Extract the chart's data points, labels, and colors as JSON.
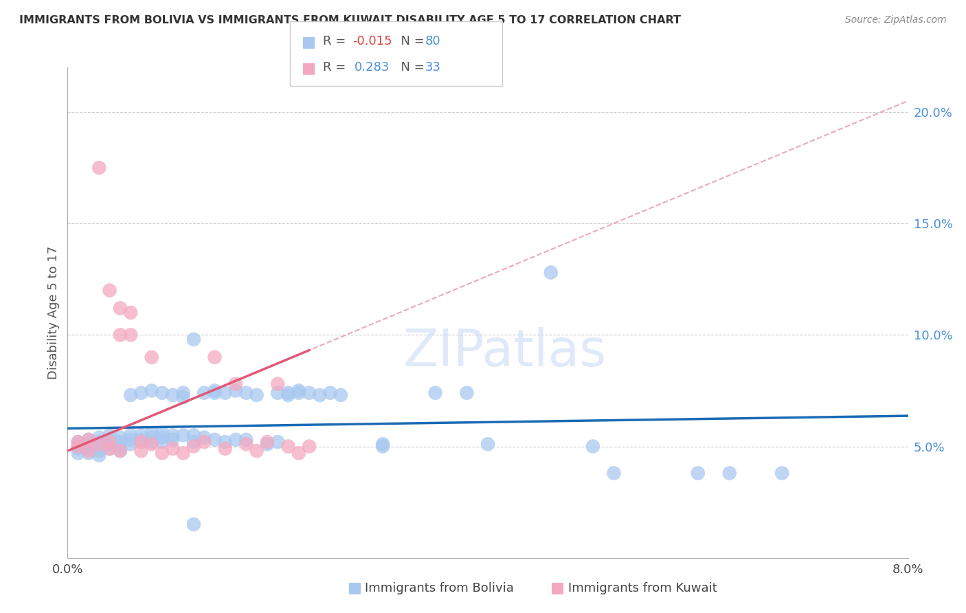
{
  "title": "IMMIGRANTS FROM BOLIVIA VS IMMIGRANTS FROM KUWAIT DISABILITY AGE 5 TO 17 CORRELATION CHART",
  "source": "Source: ZipAtlas.com",
  "ylabel": "Disability Age 5 to 17",
  "xlim": [
    0.0,
    0.08
  ],
  "ylim": [
    0.0,
    0.22
  ],
  "xtick_positions": [
    0.0,
    0.02,
    0.04,
    0.06,
    0.08
  ],
  "xtick_labels": [
    "0.0%",
    "",
    "",
    "",
    "8.0%"
  ],
  "ytick_positions": [
    0.05,
    0.1,
    0.15,
    0.2
  ],
  "ytick_labels": [
    "5.0%",
    "10.0%",
    "15.0%",
    "20.0%"
  ],
  "bolivia_color": "#a8c8f0",
  "kuwait_color": "#f4a8c0",
  "bolivia_line_color": "#1a6bb5",
  "kuwait_line_color": "#e05878",
  "dashed_line_color": "#e08898",
  "R_bolivia": -0.015,
  "N_bolivia": 80,
  "R_kuwait": 0.283,
  "N_kuwait": 33,
  "legend_label_bolivia": "Immigrants from Bolivia",
  "legend_label_kuwait": "Immigrants from Kuwait",
  "bolivia_scatter": [
    [
      0.001,
      0.052
    ],
    [
      0.001,
      0.05
    ],
    [
      0.001,
      0.049
    ],
    [
      0.001,
      0.047
    ],
    [
      0.002,
      0.053
    ],
    [
      0.002,
      0.051
    ],
    [
      0.002,
      0.049
    ],
    [
      0.002,
      0.047
    ],
    [
      0.003,
      0.054
    ],
    [
      0.003,
      0.052
    ],
    [
      0.003,
      0.05
    ],
    [
      0.003,
      0.048
    ],
    [
      0.003,
      0.046
    ],
    [
      0.004,
      0.055
    ],
    [
      0.004,
      0.053
    ],
    [
      0.004,
      0.051
    ],
    [
      0.004,
      0.049
    ],
    [
      0.005,
      0.054
    ],
    [
      0.005,
      0.052
    ],
    [
      0.005,
      0.05
    ],
    [
      0.005,
      0.048
    ],
    [
      0.006,
      0.073
    ],
    [
      0.006,
      0.055
    ],
    [
      0.006,
      0.053
    ],
    [
      0.006,
      0.051
    ],
    [
      0.007,
      0.074
    ],
    [
      0.007,
      0.055
    ],
    [
      0.007,
      0.053
    ],
    [
      0.008,
      0.075
    ],
    [
      0.008,
      0.056
    ],
    [
      0.008,
      0.054
    ],
    [
      0.008,
      0.052
    ],
    [
      0.009,
      0.074
    ],
    [
      0.009,
      0.056
    ],
    [
      0.009,
      0.054
    ],
    [
      0.009,
      0.052
    ],
    [
      0.01,
      0.073
    ],
    [
      0.01,
      0.055
    ],
    [
      0.01,
      0.053
    ],
    [
      0.011,
      0.074
    ],
    [
      0.011,
      0.072
    ],
    [
      0.011,
      0.055
    ],
    [
      0.012,
      0.098
    ],
    [
      0.012,
      0.055
    ],
    [
      0.012,
      0.052
    ],
    [
      0.013,
      0.074
    ],
    [
      0.013,
      0.054
    ],
    [
      0.014,
      0.075
    ],
    [
      0.014,
      0.074
    ],
    [
      0.014,
      0.053
    ],
    [
      0.015,
      0.074
    ],
    [
      0.015,
      0.052
    ],
    [
      0.016,
      0.075
    ],
    [
      0.016,
      0.053
    ],
    [
      0.017,
      0.074
    ],
    [
      0.017,
      0.053
    ],
    [
      0.018,
      0.073
    ],
    [
      0.019,
      0.051
    ],
    [
      0.02,
      0.074
    ],
    [
      0.02,
      0.052
    ],
    [
      0.021,
      0.073
    ],
    [
      0.021,
      0.074
    ],
    [
      0.022,
      0.075
    ],
    [
      0.022,
      0.074
    ],
    [
      0.023,
      0.074
    ],
    [
      0.024,
      0.073
    ],
    [
      0.025,
      0.074
    ],
    [
      0.026,
      0.073
    ],
    [
      0.03,
      0.051
    ],
    [
      0.03,
      0.05
    ],
    [
      0.035,
      0.074
    ],
    [
      0.038,
      0.074
    ],
    [
      0.04,
      0.051
    ],
    [
      0.046,
      0.128
    ],
    [
      0.05,
      0.05
    ],
    [
      0.052,
      0.038
    ],
    [
      0.06,
      0.038
    ],
    [
      0.063,
      0.038
    ],
    [
      0.068,
      0.038
    ],
    [
      0.012,
      0.015
    ]
  ],
  "kuwait_scatter": [
    [
      0.001,
      0.052
    ],
    [
      0.001,
      0.05
    ],
    [
      0.002,
      0.053
    ],
    [
      0.002,
      0.048
    ],
    [
      0.003,
      0.175
    ],
    [
      0.003,
      0.051
    ],
    [
      0.004,
      0.12
    ],
    [
      0.004,
      0.052
    ],
    [
      0.004,
      0.049
    ],
    [
      0.005,
      0.112
    ],
    [
      0.005,
      0.048
    ],
    [
      0.005,
      0.1
    ],
    [
      0.006,
      0.11
    ],
    [
      0.006,
      0.1
    ],
    [
      0.007,
      0.052
    ],
    [
      0.007,
      0.048
    ],
    [
      0.008,
      0.09
    ],
    [
      0.008,
      0.051
    ],
    [
      0.009,
      0.047
    ],
    [
      0.01,
      0.049
    ],
    [
      0.011,
      0.047
    ],
    [
      0.012,
      0.05
    ],
    [
      0.013,
      0.052
    ],
    [
      0.014,
      0.09
    ],
    [
      0.015,
      0.049
    ],
    [
      0.016,
      0.078
    ],
    [
      0.017,
      0.051
    ],
    [
      0.018,
      0.048
    ],
    [
      0.019,
      0.052
    ],
    [
      0.02,
      0.078
    ],
    [
      0.021,
      0.05
    ],
    [
      0.022,
      0.047
    ],
    [
      0.023,
      0.05
    ]
  ],
  "watermark": "ZIPatlas",
  "background_color": "#ffffff",
  "grid_color": "#cccccc",
  "dashed_line_x0": 0.0,
  "dashed_line_x1": 0.08,
  "dashed_line_y0": 0.048,
  "dashed_line_y1": 0.205
}
